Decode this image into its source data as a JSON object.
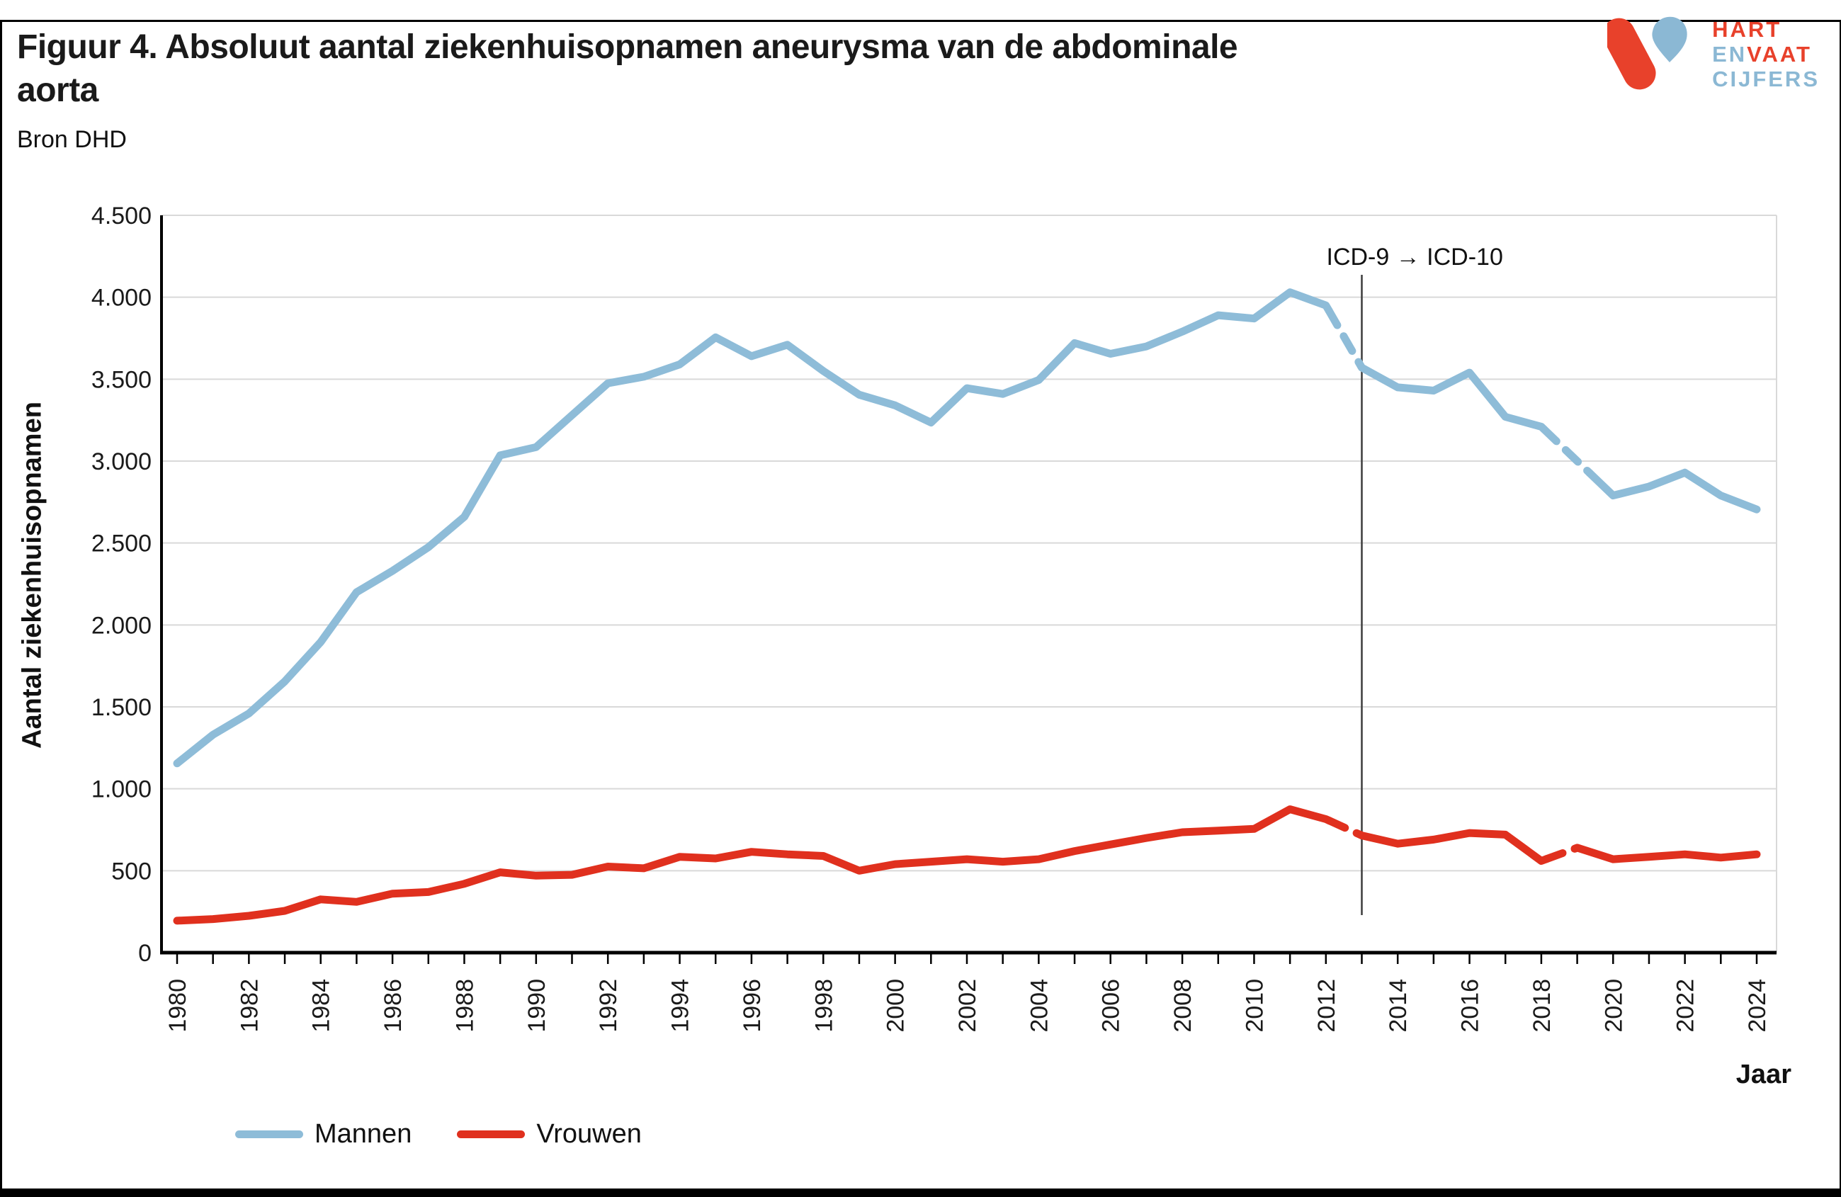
{
  "header": {
    "title": "Figuur 4. Absoluut aantal ziekenhuisopnamen aneurysma van de abdominale aorta",
    "source": "Bron DHD"
  },
  "logo": {
    "line1_red": "HART",
    "line2_blue": "EN",
    "line2_red": "VAAT",
    "line3_blue": "CIJFERS",
    "red": "#e8412b",
    "blue": "#8bb8d4"
  },
  "chart_data": {
    "type": "line",
    "title": "Figuur 4. Absoluut aantal ziekenhuisopnamen aneurysma van de abdominale aorta",
    "subtitle": "Bron DHD",
    "xlabel": "Jaar",
    "ylabel": "Aantal ziekenhuisopnamen",
    "ylim": [
      0,
      4500
    ],
    "grid": "horizontal",
    "legend_position": "bottom-left",
    "x": [
      1980,
      1981,
      1982,
      1983,
      1984,
      1985,
      1986,
      1987,
      1988,
      1989,
      1990,
      1991,
      1992,
      1993,
      1994,
      1995,
      1996,
      1997,
      1998,
      1999,
      2000,
      2001,
      2002,
      2003,
      2004,
      2005,
      2006,
      2007,
      2008,
      2009,
      2010,
      2011,
      2012,
      2013,
      2014,
      2015,
      2016,
      2017,
      2018,
      2019,
      2020,
      2021,
      2022,
      2023,
      2024
    ],
    "x_tick_label_years": [
      1980,
      1982,
      1984,
      1986,
      1988,
      1990,
      1992,
      1994,
      1996,
      1998,
      2000,
      2002,
      2004,
      2006,
      2008,
      2010,
      2012,
      2014,
      2016,
      2018,
      2020,
      2022,
      2024
    ],
    "y_ticks": [
      {
        "value": 0,
        "label": "0"
      },
      {
        "value": 500,
        "label": "500"
      },
      {
        "value": 1000,
        "label": "1.000"
      },
      {
        "value": 1500,
        "label": "1.500"
      },
      {
        "value": 2000,
        "label": "2.000"
      },
      {
        "value": 2500,
        "label": "2.500"
      },
      {
        "value": 3000,
        "label": "3.000"
      },
      {
        "value": 3500,
        "label": "3.500"
      },
      {
        "value": 4000,
        "label": "4.000"
      },
      {
        "value": 4500,
        "label": "4.500"
      }
    ],
    "series": [
      {
        "name": "Mannen",
        "color": "#8ebcd8",
        "values": [
          1155,
          1330,
          1460,
          1655,
          1895,
          2200,
          2330,
          2475,
          2660,
          3035,
          3085,
          3280,
          3475,
          3515,
          3590,
          3755,
          3640,
          3710,
          3550,
          3405,
          3340,
          3235,
          3445,
          3410,
          3495,
          3720,
          3655,
          3700,
          3790,
          3890,
          3870,
          4030,
          3950,
          3570,
          3450,
          3430,
          3540,
          3270,
          3210,
          3000,
          2790,
          2845,
          2930,
          2790,
          2705
        ],
        "dash_segments": [
          [
            2012.08,
            2012.97
          ],
          [
            2018.08,
            2019.35
          ]
        ]
      },
      {
        "name": "Vrouwen",
        "color": "#e0301e",
        "values": [
          195,
          205,
          225,
          255,
          325,
          310,
          360,
          370,
          420,
          490,
          470,
          475,
          525,
          515,
          585,
          575,
          615,
          600,
          590,
          500,
          540,
          555,
          570,
          555,
          570,
          620,
          660,
          700,
          735,
          745,
          755,
          875,
          815,
          715,
          665,
          690,
          730,
          720,
          560,
          640,
          570,
          585,
          600,
          580,
          600
        ],
        "dash_segments": [
          [
            2012.1,
            2012.97
          ],
          [
            2018.15,
            2018.95
          ]
        ]
      }
    ],
    "annotation": {
      "text": "ICD-9 → ICD-10",
      "year": 2013
    }
  },
  "legend": {
    "items": [
      {
        "label": "Mannen",
        "color": "#8ebcd8"
      },
      {
        "label": "Vrouwen",
        "color": "#e0301e"
      }
    ]
  }
}
